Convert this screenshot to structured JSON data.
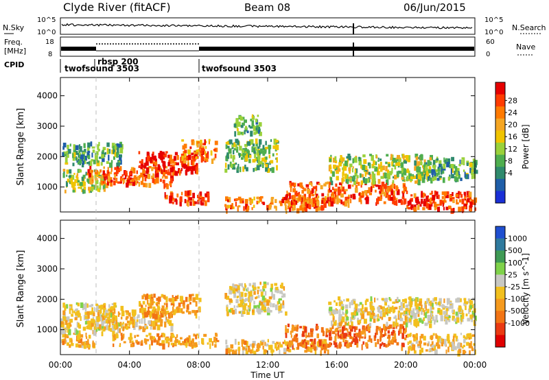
{
  "header": {
    "station": "Clyde River (fitACF)",
    "beam": "Beam 08",
    "date": "06/Jun/2015"
  },
  "noise_panel": {
    "left_label": "N.Sky",
    "right_label": "N.Search",
    "left_ticks": [
      "10^5",
      "10^0"
    ],
    "right_ticks": [
      "10^5",
      "10^0"
    ]
  },
  "freq_panel": {
    "left_label_1": "Freq.",
    "left_label_2": "[MHz]",
    "right_label": "Nave",
    "left_ticks": [
      "18",
      "8"
    ],
    "right_ticks": [
      "60",
      "0"
    ]
  },
  "cpid_panel": {
    "label": "CPID",
    "segments": [
      {
        "name": "twofsound 3503",
        "start_hour": 0
      },
      {
        "name": "rbsp 200",
        "start_hour": 2
      },
      {
        "name": "twofsound 3503",
        "start_hour": 8
      }
    ]
  },
  "power_colorbar": {
    "label": "Power [dB]",
    "ticks": [
      "28",
      "24",
      "20",
      "16",
      "12",
      "8",
      "4"
    ],
    "colors": [
      "#e60000",
      "#ff3c00",
      "#ff7a00",
      "#f5a623",
      "#f0c400",
      "#9ad13a",
      "#4fae4f",
      "#2f8a6d",
      "#1f5ea8",
      "#1a2fd6"
    ]
  },
  "velocity_colorbar": {
    "label": "Velocity [m s^-1]",
    "ticks": [
      "1000",
      "500",
      "100",
      "25",
      "-25",
      "-100",
      "-500",
      "-1000"
    ],
    "colors": [
      "#1f4fd0",
      "#2f7a9e",
      "#3f9a55",
      "#7fd24a",
      "#c8c8c2",
      "#f2c01e",
      "#f59a1e",
      "#f27414",
      "#ea3a12",
      "#e00000"
    ]
  },
  "axes": {
    "ylabel": "Slant Range [km]",
    "xlabel": "Time UT",
    "yticks": [
      "4000",
      "3000",
      "2000",
      "1000"
    ],
    "xticks": [
      "00:00",
      "04:00",
      "08:00",
      "12:00",
      "16:00",
      "20:00",
      "00:00"
    ]
  },
  "chart_data": [
    {
      "type": "heatmap",
      "title": "Power",
      "xlabel": "",
      "ylabel": "Slant Range [km]",
      "x_range_hours": [
        0,
        24
      ],
      "ylim_km": [
        180,
        4600
      ],
      "colorbar_label": "Power [dB]",
      "colorbar_range": [
        0,
        30
      ],
      "bands": [
        {
          "t_start": 0.0,
          "t_end": 2.5,
          "range_low": 900,
          "range_high": 1600,
          "value": 14
        },
        {
          "t_start": 0.0,
          "t_end": 3.5,
          "range_low": 1800,
          "range_high": 2500,
          "value": 10
        },
        {
          "t_start": 1.5,
          "t_end": 6.5,
          "range_low": 1100,
          "range_high": 1700,
          "value": 24
        },
        {
          "t_start": 4.5,
          "t_end": 8.0,
          "range_low": 1500,
          "range_high": 2200,
          "value": 28
        },
        {
          "t_start": 6.0,
          "t_end": 8.5,
          "range_low": 500,
          "range_high": 900,
          "value": 26
        },
        {
          "t_start": 7.0,
          "t_end": 9.0,
          "range_low": 1900,
          "range_high": 2600,
          "value": 22
        },
        {
          "t_start": 9.5,
          "t_end": 12.5,
          "range_low": 1600,
          "range_high": 2600,
          "value": 12
        },
        {
          "t_start": 10.0,
          "t_end": 11.5,
          "range_low": 2800,
          "range_high": 3400,
          "value": 10
        },
        {
          "t_start": 9.5,
          "t_end": 15.5,
          "range_low": 300,
          "range_high": 700,
          "value": 22
        },
        {
          "t_start": 13.0,
          "t_end": 20.0,
          "range_low": 500,
          "range_high": 1200,
          "value": 24
        },
        {
          "t_start": 15.5,
          "t_end": 21.5,
          "range_low": 1200,
          "range_high": 2100,
          "value": 14
        },
        {
          "t_start": 20.0,
          "t_end": 24.0,
          "range_low": 300,
          "range_high": 900,
          "value": 26
        },
        {
          "t_start": 21.0,
          "t_end": 24.0,
          "range_low": 1300,
          "range_high": 2000,
          "value": 10
        }
      ]
    },
    {
      "type": "heatmap",
      "title": "Velocity",
      "xlabel": "Time UT",
      "ylabel": "Slant Range [km]",
      "x_range_hours": [
        0,
        24
      ],
      "ylim_km": [
        180,
        4600
      ],
      "colorbar_label": "Velocity [m s^-1]",
      "colorbar_range": [
        -1000,
        1000
      ],
      "bands": [
        {
          "t_start": 0.0,
          "t_end": 3.5,
          "range_low": 900,
          "range_high": 1900,
          "value": 0
        },
        {
          "t_start": 0.0,
          "t_end": 2.0,
          "range_low": 500,
          "range_high": 900,
          "value": -200
        },
        {
          "t_start": 1.5,
          "t_end": 6.5,
          "range_low": 1100,
          "range_high": 1700,
          "value": -150
        },
        {
          "t_start": 4.5,
          "t_end": 8.0,
          "range_low": 1500,
          "range_high": 2200,
          "value": -300
        },
        {
          "t_start": 3.0,
          "t_end": 9.0,
          "range_low": 500,
          "range_high": 900,
          "value": -250
        },
        {
          "t_start": 9.5,
          "t_end": 13.0,
          "range_low": 1600,
          "range_high": 2600,
          "value": 0
        },
        {
          "t_start": 9.5,
          "t_end": 15.5,
          "range_low": 300,
          "range_high": 700,
          "value": -200
        },
        {
          "t_start": 13.0,
          "t_end": 20.0,
          "range_low": 500,
          "range_high": 1200,
          "value": -500
        },
        {
          "t_start": 15.5,
          "t_end": 21.5,
          "range_low": 1200,
          "range_high": 2100,
          "value": 0
        },
        {
          "t_start": 20.0,
          "t_end": 24.0,
          "range_low": 300,
          "range_high": 900,
          "value": -150
        },
        {
          "t_start": 21.0,
          "t_end": 24.0,
          "range_low": 1300,
          "range_high": 2100,
          "value": 0
        }
      ]
    }
  ]
}
